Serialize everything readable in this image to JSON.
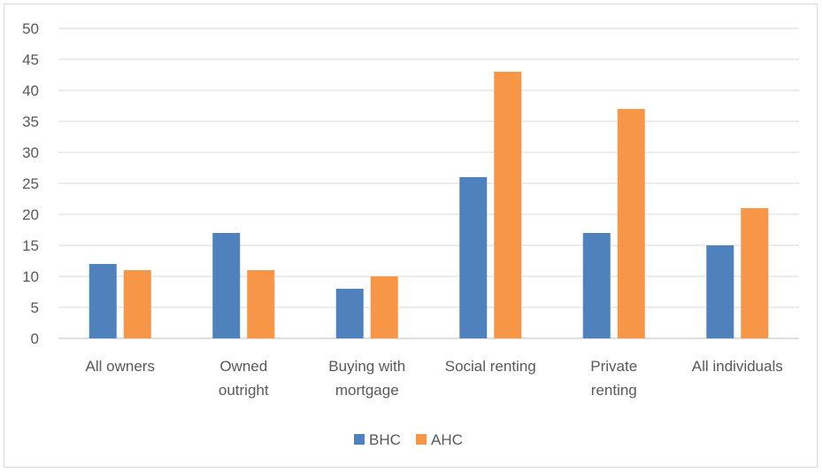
{
  "chart_data": {
    "type": "bar",
    "categories": [
      [
        "All owners"
      ],
      [
        "Owned",
        "outright"
      ],
      [
        "Buying with",
        "mortgage"
      ],
      [
        "Social renting"
      ],
      [
        "Private",
        "renting"
      ],
      [
        "All individuals"
      ]
    ],
    "series": [
      {
        "name": "BHC",
        "color": "#4f81bd",
        "values": [
          12,
          17,
          8,
          26,
          17,
          15
        ]
      },
      {
        "name": "AHC",
        "color": "#f79646",
        "values": [
          11,
          11,
          10,
          43,
          37,
          21
        ]
      }
    ],
    "ylim": [
      0,
      50
    ],
    "yticks": [
      0,
      5,
      10,
      15,
      20,
      25,
      30,
      35,
      40,
      45,
      50
    ],
    "grid": true,
    "legend": "bottom",
    "title": "",
    "xlabel": "",
    "ylabel": ""
  }
}
